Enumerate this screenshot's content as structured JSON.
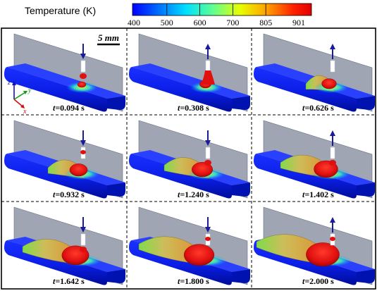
{
  "colorbar": {
    "title": "Temperature (K)",
    "ticks": [
      "400",
      "500",
      "600",
      "700",
      "805",
      "901"
    ],
    "colors": [
      "#0000ff",
      "#0070ff",
      "#00e0ff",
      "#60ff90",
      "#e8ff00",
      "#ffa000",
      "#ff2000",
      "#e00000"
    ]
  },
  "scale_bar": {
    "label": "5 mm"
  },
  "axes": {
    "z": "z",
    "y": "y",
    "x": "x"
  },
  "panels": [
    {
      "time": "0.094 s",
      "stage": 0,
      "arrow": "down",
      "droplet": "attached"
    },
    {
      "time": "0.308 s",
      "stage": 1,
      "arrow": "up",
      "droplet": "neck"
    },
    {
      "time": "0.626 s",
      "stage": 2,
      "arrow": "up",
      "droplet": "none"
    },
    {
      "time": "0.932 s",
      "stage": 3,
      "arrow": "down",
      "droplet": "falling"
    },
    {
      "time": "1.240 s",
      "stage": 4,
      "arrow": "down",
      "droplet": "attached"
    },
    {
      "time": "1.402 s",
      "stage": 5,
      "arrow": "up",
      "droplet": "attached"
    },
    {
      "time": "1.642 s",
      "stage": 6,
      "arrow": "down",
      "droplet": "attached"
    },
    {
      "time": "1.800 s",
      "stage": 7,
      "arrow": "down",
      "droplet": "falling"
    },
    {
      "time": "2.000 s",
      "stage": 8,
      "arrow": "up",
      "droplet": "falling"
    }
  ],
  "time_prefix": "t=",
  "colors": {
    "substrate_blue": "#0a1ee6",
    "wall_gray": "#9aa0ae",
    "melt_red": "#e01010",
    "arrow_blue": "#1a1a9a",
    "frame": "#000000"
  }
}
